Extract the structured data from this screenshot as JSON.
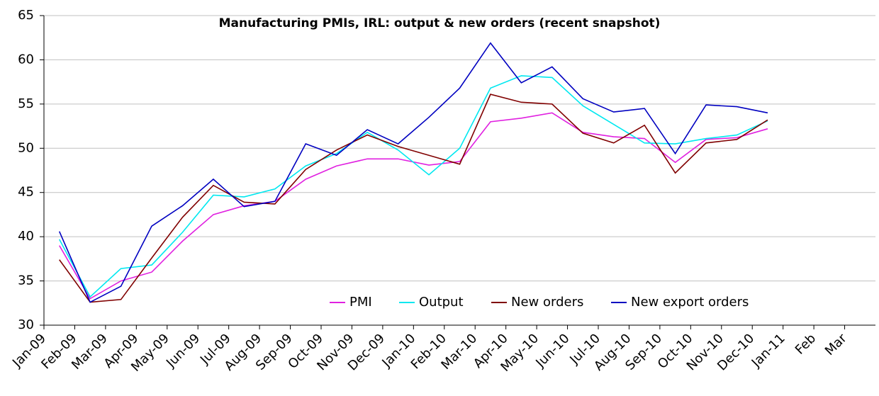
{
  "chart_data": {
    "type": "line",
    "title": "Manufacturing PMIs, IRL: output & new orders (recent snapshot)",
    "categories": [
      "Jan-09",
      "Feb-09",
      "Mar-09",
      "Apr-09",
      "May-09",
      "Jun-09",
      "Jul-09",
      "Aug-09",
      "Sep-09",
      "Oct-09",
      "Nov-09",
      "Dec-09",
      "Jan-10",
      "Feb-10",
      "Mar-10",
      "Apr-10",
      "May-10",
      "Jun-10",
      "Jul-10",
      "Aug-10",
      "Sep-10",
      "Oct-10",
      "Nov-10",
      "Dec-10",
      "Jan-11",
      "Feb",
      "Mar"
    ],
    "series": [
      {
        "name": "PMI",
        "color": "#e020e0",
        "values": [
          39,
          33,
          35,
          36,
          39.5,
          42.5,
          43.5,
          44,
          46.5,
          48,
          48.8,
          48.8,
          48.1,
          48.5,
          53,
          53.4,
          54,
          51.8,
          51.3,
          51.1,
          48.4,
          51,
          51.2,
          52.2,
          null,
          null,
          null
        ]
      },
      {
        "name": "Output",
        "color": "#00e8f0",
        "values": [
          39.7,
          33.2,
          36.4,
          36.8,
          40.5,
          44.7,
          44.5,
          45.4,
          48,
          49.4,
          51.8,
          49.8,
          47,
          50,
          56.8,
          58.2,
          58,
          54.8,
          52.7,
          50.6,
          50.5,
          51.1,
          51.5,
          53.1,
          null,
          null,
          null
        ]
      },
      {
        "name": "New orders",
        "color": "#800000",
        "values": [
          37.4,
          32.6,
          32.9,
          37.6,
          42.2,
          45.8,
          43.9,
          43.7,
          47.6,
          49.8,
          51.5,
          50.2,
          49.2,
          48.2,
          56.1,
          55.2,
          55,
          51.7,
          50.6,
          52.6,
          47.2,
          50.6,
          51,
          53.2,
          null,
          null,
          null
        ]
      },
      {
        "name": "New export orders",
        "color": "#0000c0",
        "values": [
          40.6,
          32.6,
          34.4,
          41.2,
          43.5,
          46.5,
          43.4,
          44,
          50.5,
          49.2,
          52.1,
          50.5,
          53.5,
          56.8,
          61.9,
          57.4,
          59.2,
          55.6,
          54.1,
          54.5,
          49.4,
          54.9,
          54.7,
          54,
          null,
          null,
          null
        ]
      }
    ],
    "ylim": [
      30,
      65
    ],
    "yticks": [
      30,
      35,
      40,
      45,
      50,
      55,
      60,
      65
    ],
    "grid": true,
    "legend": "bottom"
  }
}
